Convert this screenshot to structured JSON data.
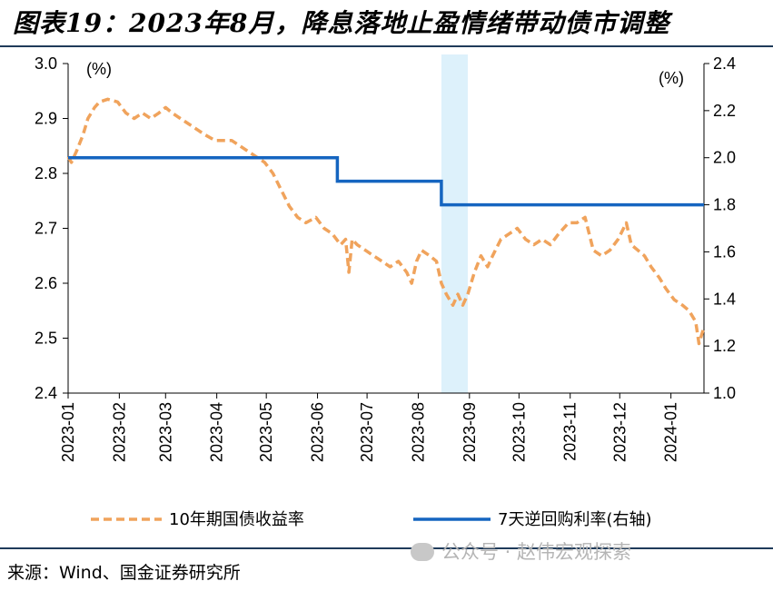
{
  "title": "图表19：2023年8月，降息落地止盈情绪带动债市调整",
  "source": "来源：Wind、国金证券研究所",
  "watermark": "公众号 · 赵伟宏观探索",
  "colors": {
    "bond": "#f0a35c",
    "repo": "#1565c0",
    "highlight": "#ddf1fb",
    "rule": "#1f3b5a"
  },
  "chart_data": {
    "type": "line",
    "left_axis": {
      "unit_label": "(%)",
      "ylim": [
        2.4,
        3.0
      ],
      "ticks": [
        "2.4",
        "2.5",
        "2.6",
        "2.7",
        "2.8",
        "2.9",
        "3.0"
      ]
    },
    "right_axis": {
      "unit_label": "(%)",
      "ylim": [
        1.0,
        2.4
      ],
      "ticks": [
        "1.0",
        "1.2",
        "1.4",
        "1.6",
        "1.8",
        "2.0",
        "2.2",
        "2.4"
      ]
    },
    "x_ticks": [
      "2023-01",
      "2023-02",
      "2023-03",
      "2023-04",
      "2023-05",
      "2023-06",
      "2023-07",
      "2023-08",
      "2023-09",
      "2023-10",
      "2023-11",
      "2023-12",
      "2024-01"
    ],
    "highlight_period": [
      "2023-08-15",
      "2023-08-31"
    ],
    "series": [
      {
        "name": "10年期国债收益率",
        "axis": "left",
        "style": "dashed",
        "points": [
          [
            "2023-01-01",
            2.83
          ],
          [
            "2023-01-03",
            2.82
          ],
          [
            "2023-01-06",
            2.84
          ],
          [
            "2023-01-10",
            2.87
          ],
          [
            "2023-01-13",
            2.9
          ],
          [
            "2023-01-17",
            2.92
          ],
          [
            "2023-01-20",
            2.93
          ],
          [
            "2023-01-25",
            2.935
          ],
          [
            "2023-01-31",
            2.93
          ],
          [
            "2023-02-05",
            2.91
          ],
          [
            "2023-02-10",
            2.9
          ],
          [
            "2023-02-15",
            2.91
          ],
          [
            "2023-02-20",
            2.9
          ],
          [
            "2023-02-25",
            2.91
          ],
          [
            "2023-03-01",
            2.92
          ],
          [
            "2023-03-05",
            2.91
          ],
          [
            "2023-03-10",
            2.9
          ],
          [
            "2023-03-15",
            2.89
          ],
          [
            "2023-03-20",
            2.88
          ],
          [
            "2023-03-25",
            2.87
          ],
          [
            "2023-03-31",
            2.86
          ],
          [
            "2023-04-05",
            2.86
          ],
          [
            "2023-04-10",
            2.86
          ],
          [
            "2023-04-15",
            2.85
          ],
          [
            "2023-04-20",
            2.84
          ],
          [
            "2023-04-25",
            2.83
          ],
          [
            "2023-04-30",
            2.82
          ],
          [
            "2023-05-05",
            2.8
          ],
          [
            "2023-05-10",
            2.77
          ],
          [
            "2023-05-15",
            2.74
          ],
          [
            "2023-05-20",
            2.72
          ],
          [
            "2023-05-25",
            2.71
          ],
          [
            "2023-05-31",
            2.72
          ],
          [
            "2023-06-05",
            2.7
          ],
          [
            "2023-06-10",
            2.69
          ],
          [
            "2023-06-15",
            2.67
          ],
          [
            "2023-06-18",
            2.68
          ],
          [
            "2023-06-20",
            2.62
          ],
          [
            "2023-06-22",
            2.68
          ],
          [
            "2023-06-25",
            2.67
          ],
          [
            "2023-06-30",
            2.66
          ],
          [
            "2023-07-05",
            2.65
          ],
          [
            "2023-07-10",
            2.64
          ],
          [
            "2023-07-15",
            2.63
          ],
          [
            "2023-07-20",
            2.64
          ],
          [
            "2023-07-25",
            2.62
          ],
          [
            "2023-07-28",
            2.6
          ],
          [
            "2023-07-31",
            2.64
          ],
          [
            "2023-08-03",
            2.66
          ],
          [
            "2023-08-08",
            2.65
          ],
          [
            "2023-08-12",
            2.64
          ],
          [
            "2023-08-15",
            2.6
          ],
          [
            "2023-08-18",
            2.58
          ],
          [
            "2023-08-22",
            2.56
          ],
          [
            "2023-08-25",
            2.58
          ],
          [
            "2023-08-28",
            2.56
          ],
          [
            "2023-08-31",
            2.58
          ],
          [
            "2023-09-04",
            2.62
          ],
          [
            "2023-09-08",
            2.65
          ],
          [
            "2023-09-12",
            2.63
          ],
          [
            "2023-09-15",
            2.65
          ],
          [
            "2023-09-20",
            2.68
          ],
          [
            "2023-09-25",
            2.69
          ],
          [
            "2023-09-30",
            2.7
          ],
          [
            "2023-10-05",
            2.68
          ],
          [
            "2023-10-10",
            2.67
          ],
          [
            "2023-10-15",
            2.68
          ],
          [
            "2023-10-20",
            2.67
          ],
          [
            "2023-10-25",
            2.69
          ],
          [
            "2023-10-31",
            2.71
          ],
          [
            "2023-11-05",
            2.71
          ],
          [
            "2023-11-10",
            2.72
          ],
          [
            "2023-11-15",
            2.66
          ],
          [
            "2023-11-20",
            2.65
          ],
          [
            "2023-11-25",
            2.66
          ],
          [
            "2023-11-30",
            2.68
          ],
          [
            "2023-12-05",
            2.71
          ],
          [
            "2023-12-08",
            2.67
          ],
          [
            "2023-12-12",
            2.66
          ],
          [
            "2023-12-16",
            2.65
          ],
          [
            "2023-12-20",
            2.63
          ],
          [
            "2023-12-25",
            2.61
          ],
          [
            "2023-12-29",
            2.59
          ],
          [
            "2024-01-03",
            2.57
          ],
          [
            "2024-01-08",
            2.56
          ],
          [
            "2024-01-12",
            2.55
          ],
          [
            "2024-01-16",
            2.53
          ],
          [
            "2024-01-18",
            2.49
          ],
          [
            "2024-01-21",
            2.52
          ]
        ]
      },
      {
        "name": "7天逆回购利率(右轴)",
        "axis": "right",
        "style": "step",
        "points": [
          [
            "2023-01-01",
            2.0
          ],
          [
            "2023-06-13",
            2.0
          ],
          [
            "2023-06-13",
            1.9
          ],
          [
            "2023-08-15",
            1.9
          ],
          [
            "2023-08-15",
            1.8
          ],
          [
            "2024-01-21",
            1.8
          ]
        ]
      }
    ]
  }
}
